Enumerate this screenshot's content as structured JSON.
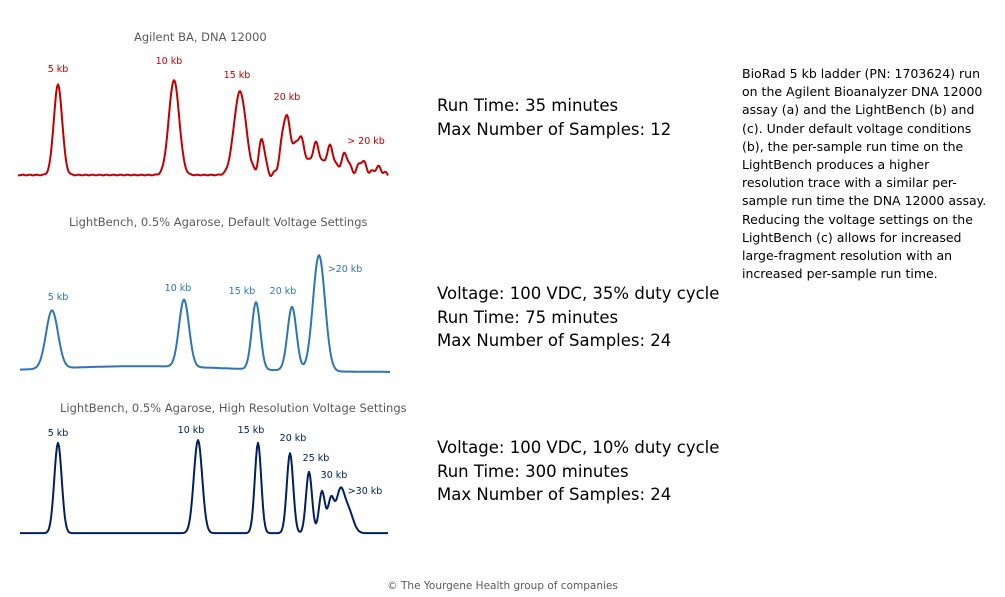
{
  "chart_data": [
    {
      "type": "line",
      "title": "Agilent BA, DNA 12000",
      "color": "#C00000",
      "peak_labels": [
        "5 kb",
        "10 kb",
        "15 kb",
        "20 kb",
        "> 20 kb"
      ],
      "run_info": [
        "Run Time: 35 minutes",
        "Max Number of Samples: 12"
      ]
    },
    {
      "type": "line",
      "title": "LightBench, 0.5% Agarose, Default Voltage Settings",
      "color": "#2E75B6",
      "peak_labels": [
        "5 kb",
        "10 kb",
        "15 kb",
        "20 kb",
        ">20 kb"
      ],
      "run_info": [
        "Voltage: 100 VDC, 35% duty cycle",
        "Run Time: 75 minutes",
        "Max Number of Samples: 24"
      ]
    },
    {
      "type": "line",
      "title": "LightBench, 0.5% Agarose, High Resolution Voltage Settings",
      "color": "#002060",
      "peak_labels": [
        "5 kb",
        "10 kb",
        "15 kb",
        "20 kb",
        "25 kb",
        "30 kb",
        ">30 kb"
      ],
      "run_info": [
        "Voltage: 100 VDC, 10% duty cycle",
        "Run Time: 300 minutes",
        "Max Number of Samples: 24"
      ]
    }
  ],
  "caption": "BioRad 5 kb ladder (PN: 1703624) run on the Agilent Bioanalyzer DNA 12000 assay (a) and the LightBench (b) and (c). Under default voltage conditions (b), the per-sample run time on the LightBench produces a higher resolution trace with a similar per-sample run time the DNA 12000 assay. Reducing the voltage settings on the LightBench (c) allows for increased large-fragment resolution with an increased per-sample run time.",
  "footer": "© The Yourgene Health group of companies"
}
